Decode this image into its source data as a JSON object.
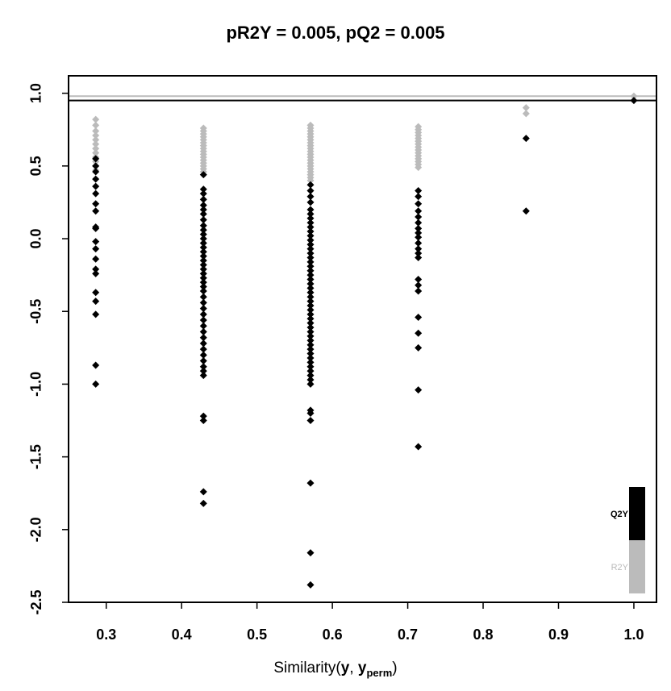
{
  "chart_data": {
    "type": "scatter",
    "title": "pR2Y = 0.005, pQ2 = 0.005",
    "xlabel": {
      "prefix": "Similarity(",
      "y": "y",
      "sep": ", ",
      "yp": "y",
      "yp_sub": "perm",
      "suffix": ")"
    },
    "ylabel": "",
    "xlim": [
      0.25,
      1.03
    ],
    "ylim": [
      -2.5,
      1.12
    ],
    "xticks": [
      "0.3",
      "0.4",
      "0.5",
      "0.6",
      "0.7",
      "0.8",
      "0.9",
      "1.0"
    ],
    "yticks": [
      "-2.5",
      "-2.0",
      "-1.5",
      "-1.0",
      "-0.5",
      "0.0",
      "0.5",
      "1.0"
    ],
    "reference_lines": {
      "R2Y": 0.98,
      "Q2Y": 0.95
    },
    "legend": {
      "position": "bottom-right",
      "entries": [
        "Q2Y",
        "R2Y"
      ]
    },
    "colors": {
      "R2Y": "#bbbbbb",
      "Q2Y": "#000000"
    },
    "series": [
      {
        "name": "R2Y",
        "points": [
          [
            0.286,
            0.82
          ],
          [
            0.286,
            0.78
          ],
          [
            0.286,
            0.74
          ],
          [
            0.286,
            0.71
          ],
          [
            0.286,
            0.68
          ],
          [
            0.286,
            0.65
          ],
          [
            0.286,
            0.62
          ],
          [
            0.286,
            0.59
          ],
          [
            0.286,
            0.56
          ],
          [
            0.286,
            0.53
          ],
          [
            0.286,
            0.5
          ],
          [
            0.286,
            0.47
          ],
          [
            0.429,
            0.76
          ],
          [
            0.429,
            0.74
          ],
          [
            0.429,
            0.72
          ],
          [
            0.429,
            0.7
          ],
          [
            0.429,
            0.68
          ],
          [
            0.429,
            0.66
          ],
          [
            0.429,
            0.64
          ],
          [
            0.429,
            0.62
          ],
          [
            0.429,
            0.6
          ],
          [
            0.429,
            0.58
          ],
          [
            0.429,
            0.56
          ],
          [
            0.429,
            0.54
          ],
          [
            0.429,
            0.52
          ],
          [
            0.429,
            0.5
          ],
          [
            0.429,
            0.48
          ],
          [
            0.429,
            0.46
          ],
          [
            0.571,
            0.78
          ],
          [
            0.571,
            0.76
          ],
          [
            0.571,
            0.74
          ],
          [
            0.571,
            0.72
          ],
          [
            0.571,
            0.7
          ],
          [
            0.571,
            0.68
          ],
          [
            0.571,
            0.66
          ],
          [
            0.571,
            0.64
          ],
          [
            0.571,
            0.62
          ],
          [
            0.571,
            0.6
          ],
          [
            0.571,
            0.58
          ],
          [
            0.571,
            0.56
          ],
          [
            0.571,
            0.54
          ],
          [
            0.571,
            0.52
          ],
          [
            0.571,
            0.5
          ],
          [
            0.571,
            0.48
          ],
          [
            0.571,
            0.46
          ],
          [
            0.571,
            0.44
          ],
          [
            0.571,
            0.42
          ],
          [
            0.571,
            0.4
          ],
          [
            0.714,
            0.77
          ],
          [
            0.714,
            0.75
          ],
          [
            0.714,
            0.73
          ],
          [
            0.714,
            0.71
          ],
          [
            0.714,
            0.69
          ],
          [
            0.714,
            0.67
          ],
          [
            0.714,
            0.65
          ],
          [
            0.714,
            0.63
          ],
          [
            0.714,
            0.61
          ],
          [
            0.714,
            0.59
          ],
          [
            0.714,
            0.57
          ],
          [
            0.714,
            0.55
          ],
          [
            0.714,
            0.53
          ],
          [
            0.714,
            0.51
          ],
          [
            0.714,
            0.49
          ],
          [
            0.857,
            0.9
          ],
          [
            0.857,
            0.86
          ],
          [
            1.0,
            0.98
          ]
        ]
      },
      {
        "name": "Q2Y",
        "points": [
          [
            0.286,
            0.55
          ],
          [
            0.286,
            0.5
          ],
          [
            0.286,
            0.46
          ],
          [
            0.286,
            0.41
          ],
          [
            0.286,
            0.36
          ],
          [
            0.286,
            0.31
          ],
          [
            0.286,
            0.24
          ],
          [
            0.286,
            0.19
          ],
          [
            0.286,
            0.08
          ],
          [
            0.286,
            0.07
          ],
          [
            0.286,
            -0.02
          ],
          [
            0.286,
            -0.07
          ],
          [
            0.286,
            -0.14
          ],
          [
            0.286,
            -0.21
          ],
          [
            0.286,
            -0.24
          ],
          [
            0.286,
            -0.37
          ],
          [
            0.286,
            -0.43
          ],
          [
            0.286,
            -0.52
          ],
          [
            0.286,
            -0.87
          ],
          [
            0.286,
            -1.0
          ],
          [
            0.429,
            0.44
          ],
          [
            0.429,
            0.34
          ],
          [
            0.429,
            0.31
          ],
          [
            0.429,
            0.27
          ],
          [
            0.429,
            0.23
          ],
          [
            0.429,
            0.2
          ],
          [
            0.429,
            0.17
          ],
          [
            0.429,
            0.13
          ],
          [
            0.429,
            0.09
          ],
          [
            0.429,
            0.06
          ],
          [
            0.429,
            0.03
          ],
          [
            0.429,
            0.0
          ],
          [
            0.429,
            -0.03
          ],
          [
            0.429,
            -0.06
          ],
          [
            0.429,
            -0.09
          ],
          [
            0.429,
            -0.12
          ],
          [
            0.429,
            -0.15
          ],
          [
            0.429,
            -0.18
          ],
          [
            0.429,
            -0.21
          ],
          [
            0.429,
            -0.24
          ],
          [
            0.429,
            -0.27
          ],
          [
            0.429,
            -0.3
          ],
          [
            0.429,
            -0.33
          ],
          [
            0.429,
            -0.36
          ],
          [
            0.429,
            -0.4
          ],
          [
            0.429,
            -0.44
          ],
          [
            0.429,
            -0.48
          ],
          [
            0.429,
            -0.52
          ],
          [
            0.429,
            -0.56
          ],
          [
            0.429,
            -0.6
          ],
          [
            0.429,
            -0.64
          ],
          [
            0.429,
            -0.68
          ],
          [
            0.429,
            -0.72
          ],
          [
            0.429,
            -0.76
          ],
          [
            0.429,
            -0.8
          ],
          [
            0.429,
            -0.84
          ],
          [
            0.429,
            -0.88
          ],
          [
            0.429,
            -0.91
          ],
          [
            0.429,
            -0.94
          ],
          [
            0.429,
            -1.22
          ],
          [
            0.429,
            -1.25
          ],
          [
            0.429,
            -1.74
          ],
          [
            0.429,
            -1.82
          ],
          [
            0.571,
            0.37
          ],
          [
            0.571,
            0.33
          ],
          [
            0.571,
            0.29
          ],
          [
            0.571,
            0.25
          ],
          [
            0.571,
            0.2
          ],
          [
            0.571,
            0.17
          ],
          [
            0.571,
            0.14
          ],
          [
            0.571,
            0.11
          ],
          [
            0.571,
            0.08
          ],
          [
            0.571,
            0.05
          ],
          [
            0.571,
            0.02
          ],
          [
            0.571,
            -0.01
          ],
          [
            0.571,
            -0.04
          ],
          [
            0.571,
            -0.07
          ],
          [
            0.571,
            -0.1
          ],
          [
            0.571,
            -0.13
          ],
          [
            0.571,
            -0.16
          ],
          [
            0.571,
            -0.19
          ],
          [
            0.571,
            -0.22
          ],
          [
            0.571,
            -0.25
          ],
          [
            0.571,
            -0.28
          ],
          [
            0.571,
            -0.31
          ],
          [
            0.571,
            -0.34
          ],
          [
            0.571,
            -0.37
          ],
          [
            0.571,
            -0.4
          ],
          [
            0.571,
            -0.43
          ],
          [
            0.571,
            -0.46
          ],
          [
            0.571,
            -0.49
          ],
          [
            0.571,
            -0.52
          ],
          [
            0.571,
            -0.55
          ],
          [
            0.571,
            -0.58
          ],
          [
            0.571,
            -0.61
          ],
          [
            0.571,
            -0.64
          ],
          [
            0.571,
            -0.67
          ],
          [
            0.571,
            -0.7
          ],
          [
            0.571,
            -0.73
          ],
          [
            0.571,
            -0.76
          ],
          [
            0.571,
            -0.79
          ],
          [
            0.571,
            -0.82
          ],
          [
            0.571,
            -0.85
          ],
          [
            0.571,
            -0.88
          ],
          [
            0.571,
            -0.91
          ],
          [
            0.571,
            -0.94
          ],
          [
            0.571,
            -0.97
          ],
          [
            0.571,
            -1.0
          ],
          [
            0.571,
            -1.18
          ],
          [
            0.571,
            -1.2
          ],
          [
            0.571,
            -1.25
          ],
          [
            0.571,
            -1.68
          ],
          [
            0.571,
            -2.16
          ],
          [
            0.571,
            -2.38
          ],
          [
            0.714,
            0.33
          ],
          [
            0.714,
            0.29
          ],
          [
            0.714,
            0.24
          ],
          [
            0.714,
            0.19
          ],
          [
            0.714,
            0.15
          ],
          [
            0.714,
            0.11
          ],
          [
            0.714,
            0.07
          ],
          [
            0.714,
            0.04
          ],
          [
            0.714,
            0.01
          ],
          [
            0.714,
            -0.03
          ],
          [
            0.714,
            -0.07
          ],
          [
            0.714,
            -0.1
          ],
          [
            0.714,
            -0.13
          ],
          [
            0.714,
            -0.28
          ],
          [
            0.714,
            -0.32
          ],
          [
            0.714,
            -0.36
          ],
          [
            0.714,
            -0.54
          ],
          [
            0.714,
            -0.65
          ],
          [
            0.714,
            -0.75
          ],
          [
            0.714,
            -1.04
          ],
          [
            0.714,
            -1.43
          ],
          [
            0.857,
            0.69
          ],
          [
            0.857,
            0.19
          ],
          [
            1.0,
            0.95
          ]
        ]
      }
    ]
  }
}
